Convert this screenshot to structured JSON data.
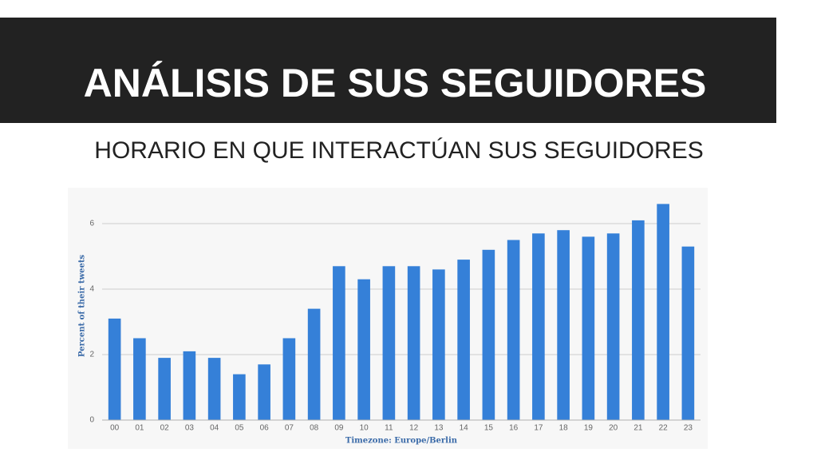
{
  "slide": {
    "title": "ANÁLISIS DE SUS SEGUIDORES",
    "subtitle": "HORARIO EN QUE INTERACTÚAN SUS SEGUIDORES"
  },
  "chart_data": {
    "type": "bar",
    "x_label": "Timezone: Europe/Berlin",
    "y_label": "Percent of their tweets",
    "categories": [
      "00",
      "01",
      "02",
      "03",
      "04",
      "05",
      "06",
      "07",
      "08",
      "09",
      "10",
      "11",
      "12",
      "13",
      "14",
      "15",
      "16",
      "17",
      "18",
      "19",
      "20",
      "21",
      "22",
      "23"
    ],
    "values": [
      3.1,
      2.5,
      1.9,
      2.1,
      1.9,
      1.4,
      1.7,
      2.5,
      3.4,
      4.7,
      4.3,
      4.7,
      4.7,
      4.6,
      4.9,
      5.2,
      5.5,
      5.7,
      5.8,
      5.6,
      5.7,
      6.1,
      6.6,
      5.3
    ],
    "color": "#3580d8",
    "ylim": [
      0,
      7
    ],
    "yticks": [
      0,
      2,
      4,
      6
    ],
    "grid": true
  }
}
